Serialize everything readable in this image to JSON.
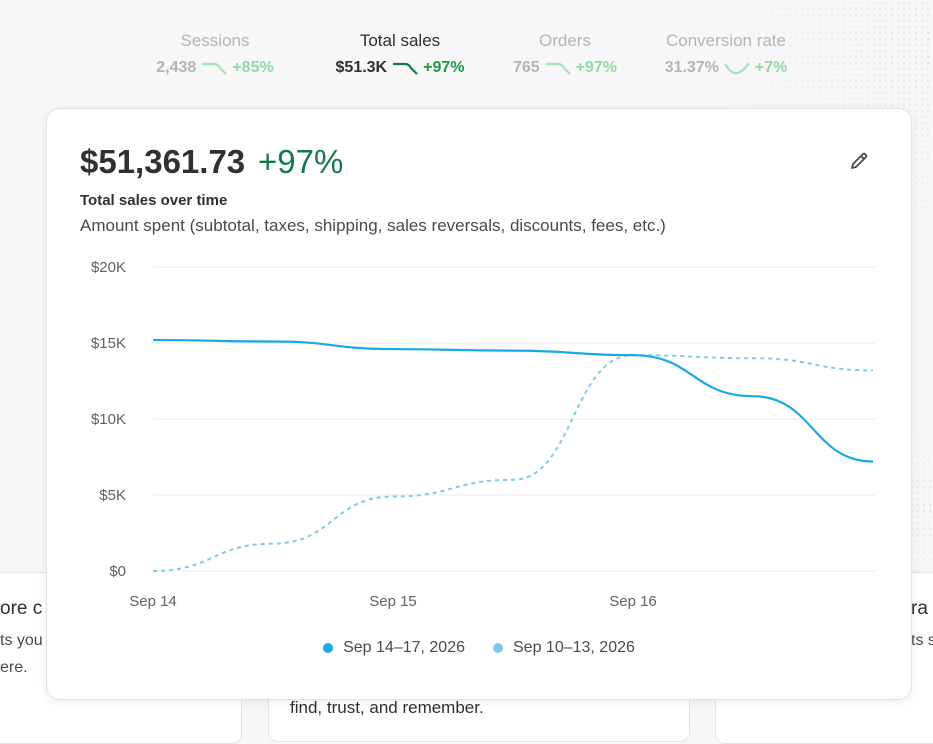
{
  "metrics": [
    {
      "label": "Sessions",
      "value": "2,438",
      "change": "+85%",
      "active": false
    },
    {
      "label": "Total sales",
      "value": "$51.3K",
      "change": "+97%",
      "active": true
    },
    {
      "label": "Orders",
      "value": "765",
      "change": "+97%",
      "active": false
    },
    {
      "label": "Conversion rate",
      "value": "31.37%",
      "change": "+7%",
      "active": false
    }
  ],
  "card": {
    "value": "$51,361.73",
    "change": "+97%",
    "title": "Total sales over time",
    "subtitle": "Amount spent (subtotal, taxes, shipping, sales reversals, discounts, fees, etc.)"
  },
  "background_cards": {
    "left_title": "ore c",
    "left_line1": "ts you",
    "left_line2": "ere.",
    "middle_text": "find, trust, and remember.",
    "right_title": "ra",
    "right_line1": "ts s"
  },
  "colors": {
    "current": "#1aa9e6",
    "previous": "#7ccbea",
    "grid": "#ebebeb",
    "positive": "#157a4a"
  },
  "chart_data": {
    "type": "line",
    "title": "Total sales over time",
    "xlabel": "",
    "ylabel": "",
    "x_ticks": [
      "Sep 14",
      "Sep 15",
      "Sep 16"
    ],
    "y_ticks": [
      "$0",
      "$5K",
      "$10K",
      "$15K",
      "$20K"
    ],
    "ylim": [
      0,
      20000
    ],
    "grid": true,
    "legend_position": "bottom",
    "series": [
      {
        "name": "Sep 14–17, 2026",
        "style": "solid",
        "x": [
          "Sep 14",
          "Sep 14 12:00",
          "Sep 15",
          "Sep 15 12:00",
          "Sep 16",
          "Sep 16 12:00",
          "Sep 17"
        ],
        "values": [
          15200,
          15100,
          14600,
          14500,
          14200,
          11500,
          7200
        ]
      },
      {
        "name": "Sep 10–13, 2026",
        "style": "dashed",
        "x": [
          "Sep 10",
          "Sep 10 12:00",
          "Sep 11",
          "Sep 11 12:00",
          "Sep 12",
          "Sep 12 12:00",
          "Sep 13"
        ],
        "values": [
          0,
          1800,
          4900,
          6000,
          14200,
          14000,
          13200
        ]
      }
    ]
  }
}
